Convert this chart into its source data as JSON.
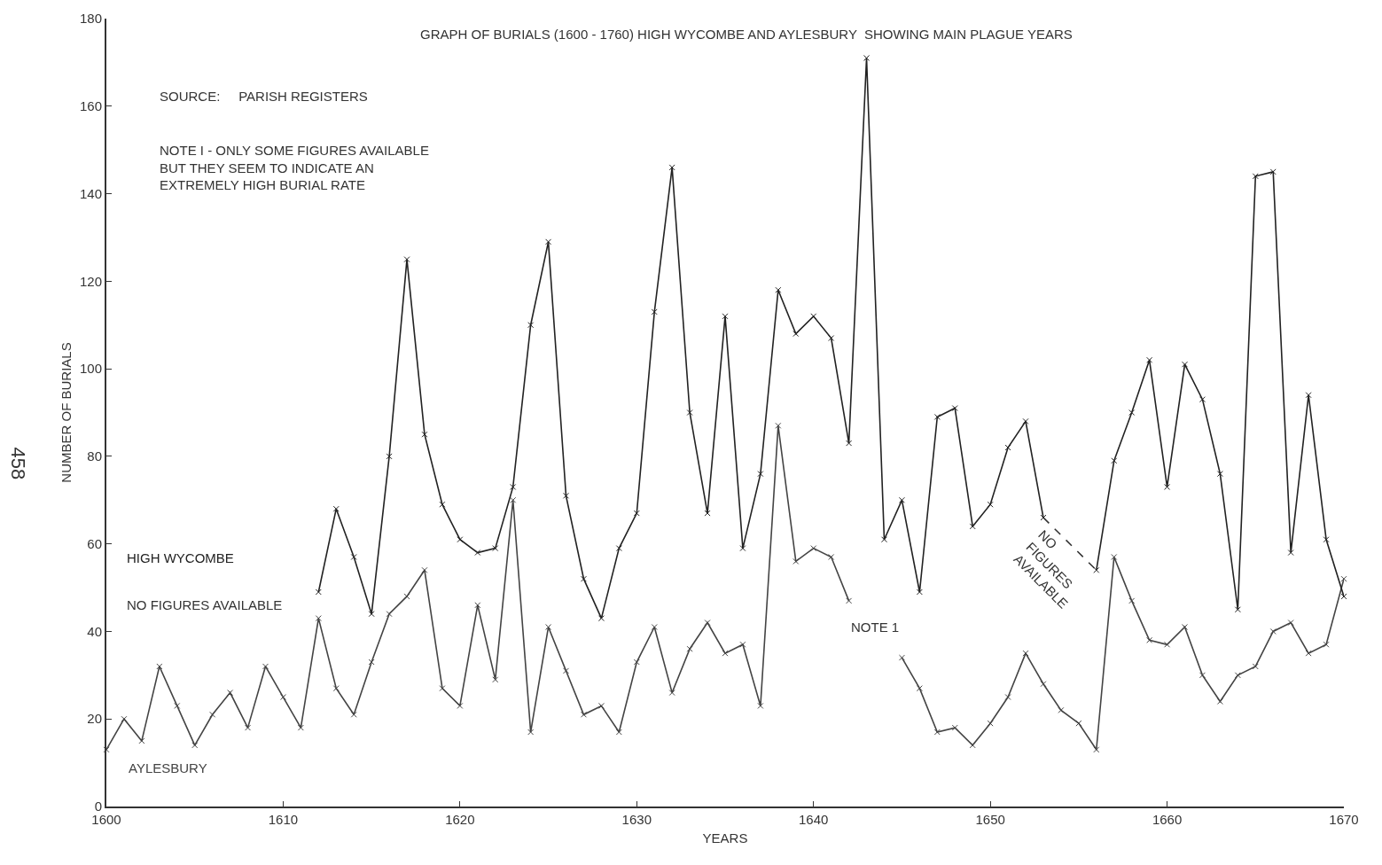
{
  "chart_data": {
    "type": "line",
    "title": "GRAPH OF BURIALS (1600 - 1760) HIGH WYCOMBE AND AYLESBURY  SHOWING MAIN PLAGUE YEARS",
    "xlabel": "YEARS",
    "ylabel": "NUMBER OF BURIALS",
    "xlim": [
      1600,
      1670
    ],
    "xticks": [
      1600,
      1610,
      1620,
      1630,
      1640,
      1650,
      1660,
      1670
    ],
    "ylim": [
      0,
      180
    ],
    "yticks": [
      0,
      20,
      40,
      60,
      80,
      100,
      120,
      140,
      160,
      180
    ],
    "grid": false,
    "legend": false,
    "marker": "cross",
    "line_style": "solid",
    "series": [
      {
        "name": "HIGH WYCOMBE",
        "color": "#222222",
        "x": [
          1612,
          1613,
          1614,
          1615,
          1616,
          1617,
          1618,
          1619,
          1620,
          1621,
          1622,
          1623,
          1624,
          1625,
          1626,
          1627,
          1628,
          1629,
          1630,
          1631,
          1632,
          1633,
          1634,
          1635,
          1636,
          1637,
          1638,
          1639,
          1640,
          1641,
          1642,
          1643,
          1644,
          1645,
          1646,
          1647,
          1648,
          1649,
          1650,
          1651,
          1652,
          1653,
          1654,
          1655,
          1656,
          1657,
          1658,
          1659,
          1660,
          1661,
          1662,
          1663,
          1664,
          1665,
          1666,
          1667,
          1668,
          1669,
          1670
        ],
        "values": [
          49,
          68,
          57,
          44,
          80,
          125,
          85,
          69,
          61,
          58,
          59,
          73,
          110,
          129,
          71,
          52,
          43,
          59,
          67,
          113,
          146,
          90,
          67,
          112,
          59,
          76,
          118,
          108,
          112,
          107,
          83,
          171,
          61,
          70,
          49,
          89,
          91,
          64,
          69,
          82,
          88,
          66,
          null,
          null,
          54,
          79,
          90,
          102,
          73,
          101,
          93,
          76,
          45,
          144,
          145,
          58,
          94,
          61,
          48
        ]
      },
      {
        "name": "AYLESBURY",
        "color": "#444444",
        "x": [
          1600,
          1601,
          1602,
          1603,
          1604,
          1605,
          1606,
          1607,
          1608,
          1609,
          1610,
          1611,
          1612,
          1613,
          1614,
          1615,
          1616,
          1617,
          1618,
          1619,
          1620,
          1621,
          1622,
          1623,
          1624,
          1625,
          1626,
          1627,
          1628,
          1629,
          1630,
          1631,
          1632,
          1633,
          1634,
          1635,
          1636,
          1637,
          1638,
          1639,
          1640,
          1641,
          1642,
          1643,
          1644,
          1645,
          1646,
          1647,
          1648,
          1649,
          1650,
          1651,
          1652,
          1653,
          1654,
          1655,
          1656,
          1657,
          1658,
          1659,
          1660,
          1661,
          1662,
          1663,
          1664,
          1665,
          1666,
          1667,
          1668,
          1669,
          1670
        ],
        "values": [
          13,
          20,
          15,
          32,
          23,
          14,
          21,
          26,
          18,
          32,
          25,
          18,
          43,
          27,
          21,
          33,
          44,
          48,
          54,
          27,
          23,
          46,
          29,
          70,
          17,
          41,
          31,
          21,
          23,
          17,
          33,
          41,
          26,
          36,
          42,
          35,
          37,
          23,
          87,
          56,
          59,
          57,
          47,
          null,
          null,
          34,
          27,
          17,
          18,
          14,
          19,
          25,
          35,
          28,
          22,
          19,
          13,
          57,
          47,
          38,
          37,
          41,
          30,
          24,
          30,
          32,
          40,
          42,
          35,
          37,
          52
        ]
      },
      {
        "color": "#333333",
        "line_style": "dashed",
        "marker": "none",
        "x": [
          1653,
          1656
        ],
        "values": [
          66,
          54
        ]
      }
    ],
    "annotations": [
      "SOURCE:     PARISH REGISTERS",
      "NOTE I - ONLY SOME FIGURES AVAILABLE\nBUT THEY SEEM TO INDICATE AN\nEXTREMELY HIGH BURIAL RATE",
      "NO FIGURES AVAILABLE",
      "NOTE 1",
      "NO\nFIGURES\nAVAILABLE",
      "458"
    ]
  }
}
